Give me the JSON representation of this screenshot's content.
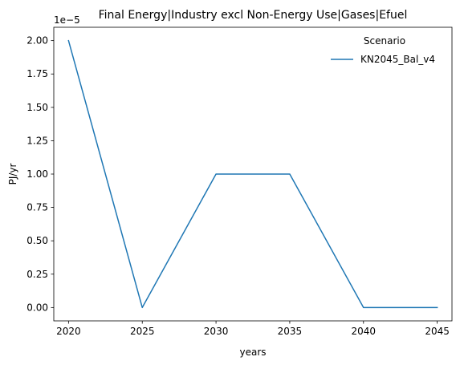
{
  "chart_data": {
    "type": "line",
    "title": "Final Energy|Industry excl Non-Energy Use|Gases|Efuel",
    "xlabel": "years",
    "ylabel": "PJ/yr",
    "y_offset_label": "1e−5",
    "x": [
      2020,
      2025,
      2030,
      2035,
      2040,
      2045
    ],
    "xlim": [
      2019,
      2046
    ],
    "ylim": [
      -0.1,
      2.1
    ],
    "x_ticks": [
      2020,
      2025,
      2030,
      2035,
      2040,
      2045
    ],
    "x_tick_labels": [
      "2020",
      "2025",
      "2030",
      "2035",
      "2040",
      "2045"
    ],
    "y_ticks": [
      0,
      0.25,
      0.5,
      0.75,
      1.0,
      1.25,
      1.5,
      1.75,
      2.0
    ],
    "y_tick_labels": [
      "0.00",
      "0.25",
      "0.50",
      "0.75",
      "1.00",
      "1.25",
      "1.50",
      "1.75",
      "2.00"
    ],
    "grid": false,
    "legend": {
      "title": "Scenario",
      "placement": "top-right"
    },
    "series": [
      {
        "name": "KN2045_Bal_v4",
        "color": "#1f77b4",
        "values": [
          2.0,
          0.0,
          1.0,
          1.0,
          0.0,
          0.0
        ]
      }
    ]
  }
}
